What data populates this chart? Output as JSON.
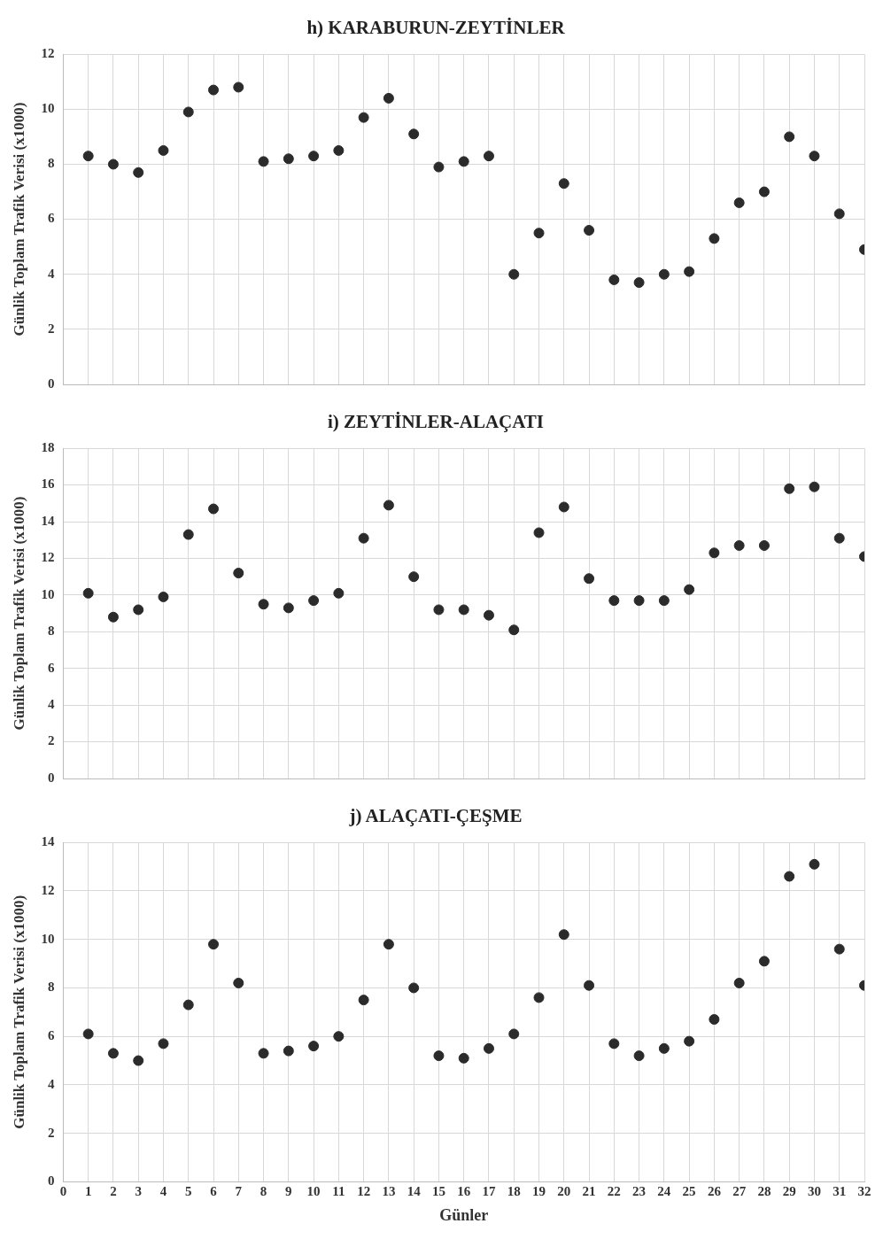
{
  "chart_data": [
    {
      "type": "scatter",
      "title": "h) KARABURUN-ZEYTİNLER",
      "ylabel": "Günlik Toplam Trafik Verisi (x1000)",
      "color": "#2b2b2b",
      "marker": "circle",
      "grid": true,
      "tick_labels": "y",
      "x": [
        1,
        2,
        3,
        4,
        5,
        6,
        7,
        8,
        9,
        10,
        11,
        12,
        13,
        14,
        15,
        16,
        17,
        18,
        19,
        20,
        21,
        22,
        23,
        24,
        25,
        26,
        27,
        28,
        29,
        30,
        31,
        32
      ],
      "values": [
        8.3,
        8.0,
        7.7,
        8.5,
        9.9,
        10.7,
        10.8,
        8.1,
        8.2,
        8.3,
        8.5,
        9.7,
        10.4,
        9.1,
        7.9,
        8.1,
        8.3,
        4.0,
        5.5,
        7.3,
        5.6,
        3.8,
        3.7,
        4.0,
        4.1,
        5.3,
        6.6,
        7.0,
        9.0,
        8.3,
        6.2,
        4.9
      ],
      "xlim": [
        0,
        32
      ],
      "xticks": [
        0,
        1,
        2,
        3,
        4,
        5,
        6,
        7,
        8,
        9,
        10,
        11,
        12,
        13,
        14,
        15,
        16,
        17,
        18,
        19,
        20,
        21,
        22,
        23,
        24,
        25,
        26,
        27,
        28,
        29,
        30,
        31,
        32
      ],
      "ylim": [
        0,
        12
      ],
      "yticks": [
        0,
        2,
        4,
        6,
        8,
        10,
        12
      ]
    },
    {
      "type": "scatter",
      "title": "i) ZEYTİNLER-ALAÇATI",
      "ylabel": "Günlik Toplam Trafik Verisi (x1000)",
      "color": "#2b2b2b",
      "marker": "circle",
      "grid": true,
      "tick_labels": "y",
      "x": [
        1,
        2,
        3,
        4,
        5,
        6,
        7,
        8,
        9,
        10,
        11,
        12,
        13,
        14,
        15,
        16,
        17,
        18,
        19,
        20,
        21,
        22,
        23,
        24,
        25,
        26,
        27,
        28,
        29,
        30,
        31,
        32
      ],
      "values": [
        10.1,
        8.8,
        9.2,
        9.9,
        13.3,
        14.7,
        11.2,
        9.5,
        9.3,
        9.7,
        10.1,
        13.1,
        14.9,
        11.0,
        9.2,
        9.2,
        8.9,
        8.1,
        13.4,
        14.8,
        10.9,
        9.7,
        9.7,
        9.7,
        10.3,
        12.3,
        12.7,
        12.7,
        15.8,
        15.9,
        13.1,
        12.1
      ],
      "xlim": [
        0,
        32
      ],
      "xticks": [
        0,
        1,
        2,
        3,
        4,
        5,
        6,
        7,
        8,
        9,
        10,
        11,
        12,
        13,
        14,
        15,
        16,
        17,
        18,
        19,
        20,
        21,
        22,
        23,
        24,
        25,
        26,
        27,
        28,
        29,
        30,
        31,
        32
      ],
      "ylim": [
        0,
        18
      ],
      "yticks": [
        0,
        2,
        4,
        6,
        8,
        10,
        12,
        14,
        16,
        18
      ]
    },
    {
      "type": "scatter",
      "title": "j) ALAÇATI-ÇEŞME",
      "ylabel": "Günlik Toplam Trafik Verisi (x1000)",
      "xlabel": "Günler",
      "color": "#2b2b2b",
      "marker": "circle",
      "grid": true,
      "x": [
        1,
        2,
        3,
        4,
        5,
        6,
        7,
        8,
        9,
        10,
        11,
        12,
        13,
        14,
        15,
        16,
        17,
        18,
        19,
        20,
        21,
        22,
        23,
        24,
        25,
        26,
        27,
        28,
        29,
        30,
        31,
        32
      ],
      "values": [
        6.1,
        5.3,
        5.0,
        5.7,
        7.3,
        9.8,
        8.2,
        5.3,
        5.4,
        5.6,
        6.0,
        7.5,
        9.8,
        8.0,
        5.2,
        5.1,
        5.5,
        6.1,
        7.6,
        10.2,
        8.1,
        5.7,
        5.2,
        5.5,
        5.8,
        6.7,
        8.2,
        9.1,
        12.6,
        13.1,
        9.6,
        8.1
      ],
      "xlim": [
        0,
        32
      ],
      "xticks": [
        0,
        1,
        2,
        3,
        4,
        5,
        6,
        7,
        8,
        9,
        10,
        11,
        12,
        13,
        14,
        15,
        16,
        17,
        18,
        19,
        20,
        21,
        22,
        23,
        24,
        25,
        26,
        27,
        28,
        29,
        30,
        31,
        32
      ],
      "ylim": [
        0,
        14
      ],
      "yticks": [
        0,
        2,
        4,
        6,
        8,
        10,
        12,
        14
      ]
    }
  ]
}
